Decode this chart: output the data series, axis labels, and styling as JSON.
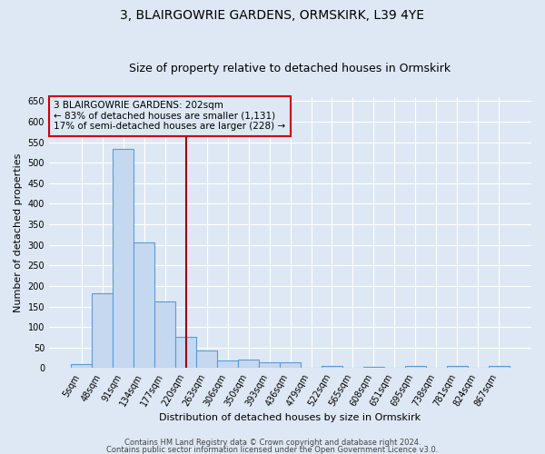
{
  "title": "3, BLAIRGOWRIE GARDENS, ORMSKIRK, L39 4YE",
  "subtitle": "Size of property relative to detached houses in Ormskirk",
  "xlabel": "Distribution of detached houses by size in Ormskirk",
  "ylabel": "Number of detached properties",
  "categories": [
    "5sqm",
    "48sqm",
    "91sqm",
    "134sqm",
    "177sqm",
    "220sqm",
    "263sqm",
    "306sqm",
    "350sqm",
    "393sqm",
    "436sqm",
    "479sqm",
    "522sqm",
    "565sqm",
    "608sqm",
    "651sqm",
    "695sqm",
    "738sqm",
    "781sqm",
    "824sqm",
    "867sqm"
  ],
  "values": [
    10,
    183,
    533,
    305,
    163,
    75,
    42,
    19,
    20,
    13,
    13,
    0,
    6,
    0,
    3,
    0,
    5,
    0,
    5,
    0,
    5
  ],
  "bar_color": "#c5d8f0",
  "bar_edge_color": "#5b9bd5",
  "bar_alpha": 1.0,
  "vline_color": "#990000",
  "annotation_text": "3 BLAIRGOWRIE GARDENS: 202sqm\n← 83% of detached houses are smaller (1,131)\n17% of semi-detached houses are larger (228) →",
  "annotation_box_color": "#cc0000",
  "ylim": [
    0,
    660
  ],
  "yticks": [
    0,
    50,
    100,
    150,
    200,
    250,
    300,
    350,
    400,
    450,
    500,
    550,
    600,
    650
  ],
  "background_color": "#dde8f4",
  "grid_color": "#ffffff",
  "footer1": "Contains HM Land Registry data © Crown copyright and database right 2024.",
  "footer2": "Contains public sector information licensed under the Open Government Licence v3.0.",
  "title_fontsize": 10,
  "subtitle_fontsize": 9,
  "axis_label_fontsize": 8,
  "tick_fontsize": 7,
  "annotation_fontsize": 7.5,
  "footer_fontsize": 6
}
